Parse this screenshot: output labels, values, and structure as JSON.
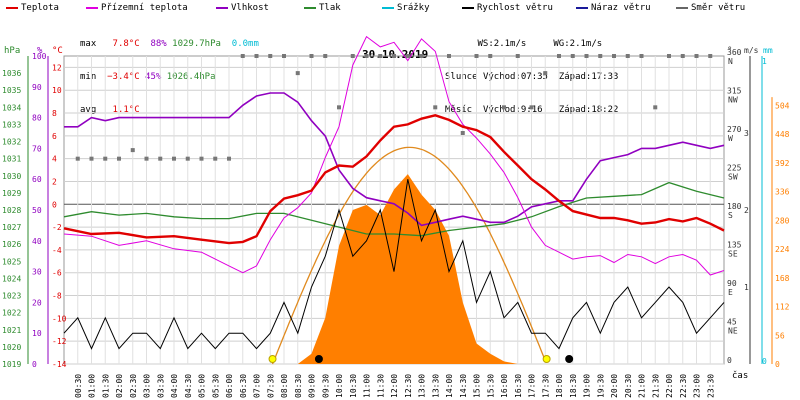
{
  "legend": [
    {
      "label": "Teplota",
      "color": "#e00000"
    },
    {
      "label": "Přízemní teplota",
      "color": "#e000e0"
    },
    {
      "label": "Vlhkost",
      "color": "#9000c0"
    },
    {
      "label": "Tlak",
      "color": "#2e8b2e"
    },
    {
      "label": "Srážky",
      "color": "#00bcd4"
    },
    {
      "label": "Rychlost větru",
      "color": "#000000"
    },
    {
      "label": "Náraz větru",
      "color": "#1a1a9a"
    },
    {
      "label": "Směr větru",
      "color": "#666666"
    }
  ],
  "stats": {
    "max": {
      "label": "max",
      "temp": "7.8°C",
      "hum": "88%",
      "press": "1029.7hPa",
      "rain": "0.0mm"
    },
    "min": {
      "label": "min",
      "temp": "−3.4°C",
      "hum": "45%",
      "press": "1026.4hPa"
    },
    "avg": {
      "label": "avg",
      "temp": "1.1°C"
    }
  },
  "wind_info": {
    "ws": "WS:2.1m/s",
    "wg": "WG:2.1m/s"
  },
  "sun": {
    "label": "Slunce",
    "rise": "Východ:07:35",
    "set": "Západ:17:33"
  },
  "moon": {
    "label": "Měsíc",
    "rise": "Východ:9:16",
    "set": "Západ:18:22"
  },
  "axis_units": {
    "hpa": "hPa",
    "pct": "%",
    "deg": "°C",
    "degw": "°",
    "ms": "m/s",
    "mm": "mm",
    "wm2": "W/m²",
    "time": "čas"
  },
  "colors": {
    "temp": "#e00000",
    "ground": "#e000e0",
    "hum": "#9000c0",
    "press": "#2e8b2e",
    "rain": "#00bcd4",
    "wind": "#000000",
    "gust": "#1a1a9a",
    "dir": "#777777",
    "solar": "#ff7f00",
    "theory": "#e08a1e"
  },
  "chart_data": {
    "type": "line",
    "title": "30.10.2019",
    "x_ticks": [
      "00:30",
      "01:00",
      "01:30",
      "02:00",
      "02:30",
      "03:00",
      "03:30",
      "04:00",
      "04:30",
      "05:00",
      "05:30",
      "06:00",
      "06:30",
      "07:00",
      "07:30",
      "08:00",
      "08:30",
      "09:00",
      "09:30",
      "10:00",
      "10:30",
      "11:00",
      "11:30",
      "12:00",
      "12:30",
      "13:00",
      "13:30",
      "14:00",
      "14:30",
      "15:00",
      "15:30",
      "16:00",
      "16:30",
      "17:00",
      "17:30",
      "18:00",
      "18:30",
      "19:00",
      "19:30",
      "20:00",
      "20:30",
      "21:00",
      "21:30",
      "22:00",
      "22:30",
      "23:00",
      "23:30"
    ],
    "axes": {
      "pressure_hpa": {
        "range": [
          1019,
          1037
        ],
        "ticks": [
          "1019",
          "1020",
          "1021",
          "1022",
          "1023",
          "1024",
          "1025",
          "1026",
          "1027",
          "1028",
          "1029",
          "1030",
          "1031",
          "1032",
          "1033",
          "1034",
          "1035",
          "1036"
        ]
      },
      "humidity_pct": {
        "range": [
          0,
          100
        ],
        "ticks": [
          "0",
          "10",
          "20",
          "30",
          "40",
          "50",
          "60",
          "70",
          "80",
          "90",
          "100"
        ]
      },
      "temp_c": {
        "range": [
          -14,
          13
        ],
        "ticks": [
          "-14",
          "-12",
          "-10",
          "-8",
          "-6",
          "-4",
          "-2",
          "0",
          "2",
          "4",
          "6",
          "8",
          "10",
          "12"
        ]
      },
      "direction_deg": {
        "range": [
          0,
          360
        ],
        "ticks": [
          "0",
          "45",
          "90",
          "135",
          "180",
          "225",
          "270",
          "315",
          "360"
        ],
        "labels": [
          "",
          "NE",
          "E",
          "SE",
          "S",
          "SW",
          "W",
          "NW",
          "N"
        ]
      },
      "wind_ms": {
        "range": [
          0,
          4
        ],
        "ticks": [
          "1",
          "2",
          "3"
        ]
      },
      "rain_mm": {
        "range": [
          0,
          1
        ],
        "ticks": [
          "0",
          "1"
        ]
      },
      "solar_wm2": {
        "range": [
          0,
          600
        ],
        "ticks": [
          "0",
          "56",
          "112",
          "168",
          "224",
          "280",
          "336",
          "392",
          "448",
          "504"
        ]
      }
    },
    "series": [
      {
        "name": "Teplota",
        "unit": "°C",
        "x": [
          0,
          1,
          2,
          3,
          4,
          5,
          6,
          6.5,
          7,
          7.5,
          8,
          8.5,
          9,
          9.5,
          10,
          10.5,
          11,
          11.5,
          12,
          12.5,
          13,
          13.5,
          14,
          14.5,
          15,
          15.5,
          16,
          16.5,
          17,
          17.5,
          18,
          18.5,
          19,
          19.5,
          20,
          20.5,
          21,
          21.5,
          22,
          22.5,
          23,
          23.5,
          24
        ],
        "y": [
          -2.1,
          -2.6,
          -2.5,
          -2.9,
          -2.8,
          -3.1,
          -3.4,
          -3.3,
          -2.8,
          -0.6,
          0.5,
          0.8,
          1.2,
          2.8,
          3.4,
          3.3,
          4.2,
          5.6,
          6.8,
          7.0,
          7.5,
          7.8,
          7.4,
          6.8,
          6.5,
          5.9,
          4.6,
          3.4,
          2.2,
          1.3,
          0.3,
          -0.6,
          -0.9,
          -1.2,
          -1.2,
          -1.4,
          -1.7,
          -1.6,
          -1.3,
          -1.5,
          -1.2,
          -1.7,
          -2.3
        ]
      },
      {
        "name": "Přízemní teplota",
        "unit": "°C",
        "x": [
          0,
          1,
          2,
          3,
          4,
          5,
          6,
          6.5,
          7,
          7.5,
          8,
          8.5,
          9,
          9.5,
          10,
          10.5,
          11,
          11.5,
          12,
          12.5,
          13,
          13.5,
          14,
          14.5,
          15,
          15.5,
          16,
          16.5,
          17,
          17.5,
          18,
          18.5,
          19,
          19.5,
          20,
          20.5,
          21,
          21.5,
          22,
          22.5,
          23,
          23.5,
          24
        ],
        "y": [
          -2.6,
          -2.8,
          -3.6,
          -3.2,
          -3.9,
          -4.2,
          -5.4,
          -6.0,
          -5.4,
          -3.1,
          -1.2,
          -0.3,
          1.0,
          4.1,
          6.8,
          12.2,
          14.7,
          13.8,
          14.2,
          12.6,
          14.5,
          13.4,
          9.0,
          7.0,
          5.8,
          4.4,
          2.8,
          0.6,
          -2.0,
          -3.6,
          -4.2,
          -4.8,
          -4.6,
          -4.5,
          -5.1,
          -4.4,
          -4.6,
          -5.2,
          -4.6,
          -4.4,
          -4.9,
          -6.2,
          -5.8
        ]
      },
      {
        "name": "Vlhkost",
        "unit": "%",
        "x": [
          0,
          0.5,
          1,
          1.5,
          2,
          3,
          4,
          5,
          6,
          6.5,
          7,
          7.5,
          8,
          8.5,
          9,
          9.5,
          10,
          10.5,
          11,
          11.5,
          12,
          12.5,
          13,
          13.5,
          14,
          14.5,
          15,
          15.5,
          16,
          16.5,
          17,
          17.5,
          18,
          18.5,
          19,
          19.5,
          20,
          20.5,
          21,
          21.5,
          22,
          22.5,
          23,
          23.5,
          24
        ],
        "y": [
          77,
          77,
          80,
          79,
          80,
          80,
          80,
          80,
          80,
          84,
          87,
          88,
          88,
          85,
          79,
          74,
          63,
          57,
          54,
          53,
          52,
          49,
          45,
          46,
          47,
          48,
          47,
          46,
          46,
          48,
          51,
          52,
          53,
          53,
          60,
          66,
          67,
          68,
          70,
          70,
          71,
          72,
          71,
          70,
          71
        ]
      },
      {
        "name": "Tlak",
        "unit": "hPa",
        "x": [
          0,
          1,
          2,
          3,
          4,
          5,
          6,
          7,
          8,
          9,
          10,
          11,
          12,
          13,
          14,
          15,
          16,
          17,
          18,
          19,
          20,
          21,
          22,
          23,
          24
        ],
        "y": [
          1027.6,
          1027.9,
          1027.7,
          1027.8,
          1027.6,
          1027.5,
          1027.5,
          1027.8,
          1027.8,
          1027.4,
          1027.0,
          1026.6,
          1026.6,
          1026.5,
          1026.8,
          1027.0,
          1027.2,
          1027.6,
          1028.2,
          1028.7,
          1028.8,
          1028.9,
          1029.6,
          1029.1,
          1028.7
        ]
      },
      {
        "name": "Rychlost větru",
        "unit": "m/s",
        "x": [
          0,
          0.5,
          1,
          1.5,
          2,
          2.5,
          3,
          3.5,
          4,
          4.5,
          5,
          5.5,
          6,
          6.5,
          7,
          7.5,
          8,
          8.5,
          9,
          9.5,
          10,
          10.5,
          11,
          11.5,
          12,
          12.5,
          13,
          13.5,
          14,
          14.5,
          15,
          15.5,
          16,
          16.5,
          17,
          17.5,
          18,
          18.5,
          19,
          19.5,
          20,
          20.5,
          21,
          21.5,
          22,
          22.5,
          23,
          23.5,
          24
        ],
        "y": [
          0.4,
          0.6,
          0.2,
          0.6,
          0.2,
          0.4,
          0.4,
          0.2,
          0.6,
          0.2,
          0.4,
          0.2,
          0.4,
          0.4,
          0.2,
          0.4,
          0.8,
          0.4,
          1.0,
          1.4,
          2.0,
          1.4,
          1.6,
          2.0,
          1.2,
          2.4,
          1.6,
          2.0,
          1.2,
          1.6,
          0.8,
          1.2,
          0.6,
          0.8,
          0.4,
          0.4,
          0.2,
          0.6,
          0.8,
          0.4,
          0.8,
          1.0,
          0.6,
          0.8,
          1.0,
          0.8,
          0.4,
          0.6,
          0.8
        ]
      },
      {
        "name": "Sluneční záření",
        "unit": "W/m²",
        "x": [
          8.5,
          9,
          9.5,
          10,
          10.5,
          11,
          11.5,
          12,
          12.5,
          13,
          13.5,
          14,
          14.5,
          15,
          15.5,
          16,
          16.5
        ],
        "y": [
          0,
          20,
          90,
          230,
          300,
          310,
          290,
          340,
          370,
          330,
          300,
          250,
          120,
          40,
          20,
          5,
          0
        ]
      }
    ],
    "wind_direction_deg": {
      "x": [
        0.5,
        1,
        1.5,
        2,
        2.5,
        3,
        3.5,
        4,
        4.5,
        5,
        5.5,
        6,
        6.5,
        7,
        7.5,
        8,
        8.5,
        9,
        9.5,
        10,
        10.5,
        11,
        11.5,
        12,
        12.5,
        13,
        13.5,
        14,
        14.5,
        15,
        15.5,
        16,
        16.5,
        17,
        17.5,
        18,
        18.5,
        19,
        19.5,
        20,
        20.5,
        21,
        21.5,
        22,
        22.5,
        23,
        23.5
      ],
      "y": [
        240,
        240,
        240,
        240,
        250,
        240,
        240,
        240,
        240,
        240,
        240,
        240,
        360,
        360,
        360,
        360,
        340,
        360,
        360,
        300,
        360,
        360,
        360,
        360,
        360,
        360,
        300,
        360,
        270,
        360,
        360,
        300,
        360,
        300,
        340,
        360,
        360,
        360,
        360,
        360,
        360,
        360,
        300,
        360,
        360,
        360,
        360
      ]
    }
  }
}
